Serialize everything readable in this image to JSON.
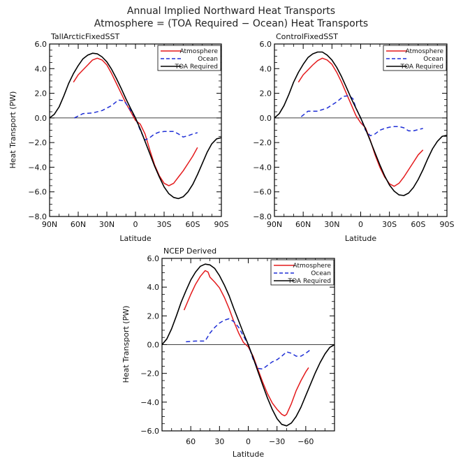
{
  "figure": {
    "title_line1": "Annual Implied Northward Heat Transports",
    "title_line2": "Atmosphere = (TOA Required − Ocean) Heat Transports"
  },
  "colors": {
    "atmosphere": "#e41a1c",
    "ocean": "#1f2fd6",
    "toa": "#000000",
    "zero_line": "#000000"
  },
  "chart_data": [
    {
      "type": "line",
      "title": "TallArcticFixedSST",
      "xlabel": "Latitude",
      "ylabel": "Heat Transport (PW)",
      "xlim": [
        90,
        -90
      ],
      "ylim": [
        -8,
        6
      ],
      "xticks": [
        90,
        60,
        30,
        0,
        -30,
        -60,
        -90
      ],
      "xticklabels": [
        "90N",
        "60N",
        "30N",
        "0",
        "30S",
        "60S",
        "90S"
      ],
      "yticks": [
        -8,
        -6,
        -4,
        -2,
        0,
        2,
        4,
        6
      ],
      "yticklabels": [
        "−8.0",
        "−6.0",
        "−4.0",
        "−2.0",
        "0.0",
        "2.0",
        "4.0",
        "6.0"
      ],
      "legend": "top-right",
      "series": [
        {
          "name": "Atmosphere",
          "style": "solid",
          "x": [
            65,
            60,
            50,
            45,
            40,
            35,
            30,
            25,
            20,
            15,
            10,
            5,
            0,
            -5,
            -10,
            -15,
            -20,
            -25,
            -30,
            -35,
            -40,
            -45,
            -50,
            -55,
            -60,
            -65
          ],
          "y": [
            2.9,
            3.5,
            4.3,
            4.7,
            4.85,
            4.7,
            4.3,
            3.6,
            2.8,
            2.0,
            1.2,
            0.5,
            -0.2,
            -0.5,
            -1.3,
            -2.6,
            -3.8,
            -4.7,
            -5.3,
            -5.5,
            -5.3,
            -4.8,
            -4.3,
            -3.7,
            -3.1,
            -2.4
          ]
        },
        {
          "name": "Ocean",
          "style": "dashed",
          "x": [
            64,
            55,
            45,
            35,
            25,
            18,
            12,
            5,
            0,
            -5,
            -10,
            -15,
            -20,
            -25,
            -30,
            -35,
            -40,
            -45,
            -50,
            -55,
            -60,
            -65
          ],
          "y": [
            0.0,
            0.35,
            0.4,
            0.6,
            1.0,
            1.45,
            1.4,
            0.6,
            0.0,
            -1.0,
            -1.8,
            -1.6,
            -1.3,
            -1.15,
            -1.1,
            -1.1,
            -1.1,
            -1.3,
            -1.55,
            -1.45,
            -1.3,
            -1.2
          ]
        },
        {
          "name": "TOA Required",
          "style": "solid",
          "x": [
            90,
            85,
            80,
            75,
            70,
            65,
            60,
            55,
            50,
            45,
            40,
            35,
            30,
            25,
            20,
            15,
            10,
            5,
            0,
            -5,
            -10,
            -15,
            -20,
            -25,
            -30,
            -35,
            -40,
            -45,
            -50,
            -55,
            -60,
            -65,
            -70,
            -75,
            -80,
            -85,
            -90
          ],
          "y": [
            0.0,
            0.3,
            0.9,
            1.8,
            2.8,
            3.6,
            4.25,
            4.8,
            5.1,
            5.25,
            5.2,
            4.95,
            4.55,
            3.95,
            3.2,
            2.4,
            1.55,
            0.75,
            0.0,
            -0.9,
            -1.9,
            -2.9,
            -3.9,
            -4.8,
            -5.6,
            -6.15,
            -6.45,
            -6.55,
            -6.4,
            -6.0,
            -5.4,
            -4.6,
            -3.7,
            -2.8,
            -2.1,
            -1.7,
            -1.6
          ]
        }
      ]
    },
    {
      "type": "line",
      "title": "ControlFixedSST",
      "xlabel": "Latitude",
      "ylabel": "",
      "xlim": [
        90,
        -90
      ],
      "ylim": [
        -8,
        6
      ],
      "xticks": [
        90,
        60,
        30,
        0,
        -30,
        -60,
        -90
      ],
      "xticklabels": [
        "90N",
        "60N",
        "30N",
        "0",
        "30S",
        "60S",
        "90S"
      ],
      "yticks": [
        -8,
        -6,
        -4,
        -2,
        0,
        2,
        4,
        6
      ],
      "yticklabels": [
        "−8.0",
        "−6.0",
        "−4.0",
        "−2.0",
        "0.0",
        "2.0",
        "4.0",
        "6.0"
      ],
      "legend": "top-right",
      "series": [
        {
          "name": "Atmosphere",
          "style": "solid",
          "x": [
            65,
            60,
            50,
            45,
            40,
            35,
            30,
            25,
            20,
            15,
            10,
            5,
            0,
            -5,
            -10,
            -15,
            -20,
            -25,
            -30,
            -35,
            -40,
            -45,
            -50,
            -55,
            -60,
            -65
          ],
          "y": [
            2.9,
            3.5,
            4.3,
            4.65,
            4.85,
            4.7,
            4.35,
            3.7,
            2.9,
            2.0,
            1.1,
            0.2,
            -0.4,
            -0.8,
            -1.8,
            -3.0,
            -4.0,
            -4.8,
            -5.35,
            -5.55,
            -5.3,
            -4.8,
            -4.2,
            -3.6,
            -3.0,
            -2.6
          ]
        },
        {
          "name": "Ocean",
          "style": "dashed",
          "x": [
            62,
            55,
            45,
            35,
            25,
            18,
            12,
            8,
            5,
            0,
            -5,
            -10,
            -15,
            -20,
            -25,
            -30,
            -35,
            -40,
            -45,
            -50,
            -55,
            -60,
            -65
          ],
          "y": [
            0.1,
            0.55,
            0.55,
            0.8,
            1.3,
            1.75,
            1.8,
            1.55,
            0.8,
            0.0,
            -1.0,
            -1.45,
            -1.3,
            -1.0,
            -0.85,
            -0.75,
            -0.7,
            -0.7,
            -0.8,
            -1.05,
            -1.05,
            -0.95,
            -0.85
          ]
        },
        {
          "name": "TOA Required",
          "style": "solid",
          "x": [
            90,
            85,
            80,
            75,
            70,
            65,
            60,
            55,
            50,
            45,
            40,
            35,
            30,
            25,
            20,
            15,
            10,
            5,
            0,
            -5,
            -10,
            -15,
            -20,
            -25,
            -30,
            -35,
            -40,
            -45,
            -50,
            -55,
            -60,
            -65,
            -70,
            -75,
            -80,
            -85,
            -90
          ],
          "y": [
            0.0,
            0.35,
            1.0,
            1.9,
            2.9,
            3.7,
            4.35,
            4.9,
            5.2,
            5.35,
            5.35,
            5.1,
            4.7,
            4.1,
            3.35,
            2.5,
            1.6,
            0.8,
            0.0,
            -0.9,
            -1.85,
            -2.85,
            -3.8,
            -4.7,
            -5.45,
            -5.95,
            -6.25,
            -6.3,
            -6.1,
            -5.65,
            -5.0,
            -4.2,
            -3.3,
            -2.5,
            -1.9,
            -1.5,
            -1.4
          ]
        }
      ]
    },
    {
      "type": "line",
      "title": "NCEP Derived",
      "xlabel": "Latitude",
      "ylabel": "Heat Transport (PW)",
      "xlim": [
        90,
        -90
      ],
      "ylim": [
        -6,
        6
      ],
      "xticks": [
        60,
        30,
        0,
        -30,
        -60
      ],
      "xticklabels": [
        "60",
        "30",
        "0",
        "−30",
        "−60"
      ],
      "yticks": [
        -6,
        -4,
        -2,
        0,
        2,
        4,
        6
      ],
      "yticklabels": [
        "−6.0",
        "−4.0",
        "−2.0",
        "0.0",
        "2.0",
        "4.0",
        "6.0"
      ],
      "legend": "top-right",
      "series": [
        {
          "name": "Atmosphere",
          "style": "solid",
          "x": [
            67,
            60,
            55,
            50,
            45,
            42,
            40,
            35,
            30,
            25,
            20,
            15,
            10,
            5,
            0,
            -5,
            -10,
            -15,
            -20,
            -25,
            -30,
            -35,
            -38,
            -40,
            -45,
            -50,
            -55,
            -60,
            -63
          ],
          "y": [
            2.4,
            3.5,
            4.2,
            4.75,
            5.15,
            5.05,
            4.7,
            4.35,
            3.95,
            3.3,
            2.5,
            1.6,
            0.8,
            0.15,
            -0.15,
            -0.8,
            -1.7,
            -2.6,
            -3.4,
            -4.05,
            -4.5,
            -4.85,
            -4.95,
            -4.85,
            -4.1,
            -3.2,
            -2.5,
            -1.9,
            -1.6
          ]
        },
        {
          "name": "Ocean",
          "style": "dashed",
          "x": [
            65,
            55,
            45,
            40,
            35,
            30,
            25,
            20,
            15,
            10,
            5,
            0,
            -5,
            -10,
            -15,
            -20,
            -25,
            -30,
            -35,
            -40,
            -45,
            -50,
            -55,
            -60,
            -65
          ],
          "y": [
            0.2,
            0.25,
            0.25,
            0.8,
            1.2,
            1.5,
            1.7,
            1.8,
            1.6,
            1.2,
            0.6,
            0.0,
            -1.0,
            -1.65,
            -1.7,
            -1.45,
            -1.2,
            -1.05,
            -0.8,
            -0.5,
            -0.6,
            -0.8,
            -0.8,
            -0.6,
            -0.35
          ]
        },
        {
          "name": "TOA Required",
          "style": "solid",
          "x": [
            90,
            85,
            80,
            75,
            70,
            65,
            60,
            55,
            50,
            45,
            40,
            35,
            30,
            25,
            20,
            15,
            10,
            5,
            0,
            -5,
            -10,
            -15,
            -20,
            -25,
            -30,
            -35,
            -40,
            -45,
            -50,
            -55,
            -60,
            -65,
            -70,
            -75,
            -80,
            -85,
            -90
          ],
          "y": [
            0.0,
            0.4,
            1.1,
            2.0,
            2.95,
            3.75,
            4.5,
            5.05,
            5.45,
            5.6,
            5.55,
            5.3,
            4.8,
            4.15,
            3.4,
            2.5,
            1.65,
            0.8,
            0.0,
            -0.9,
            -1.85,
            -2.8,
            -3.7,
            -4.5,
            -5.15,
            -5.55,
            -5.65,
            -5.45,
            -5.0,
            -4.35,
            -3.55,
            -2.75,
            -1.95,
            -1.25,
            -0.65,
            -0.2,
            0.0
          ]
        }
      ]
    }
  ]
}
